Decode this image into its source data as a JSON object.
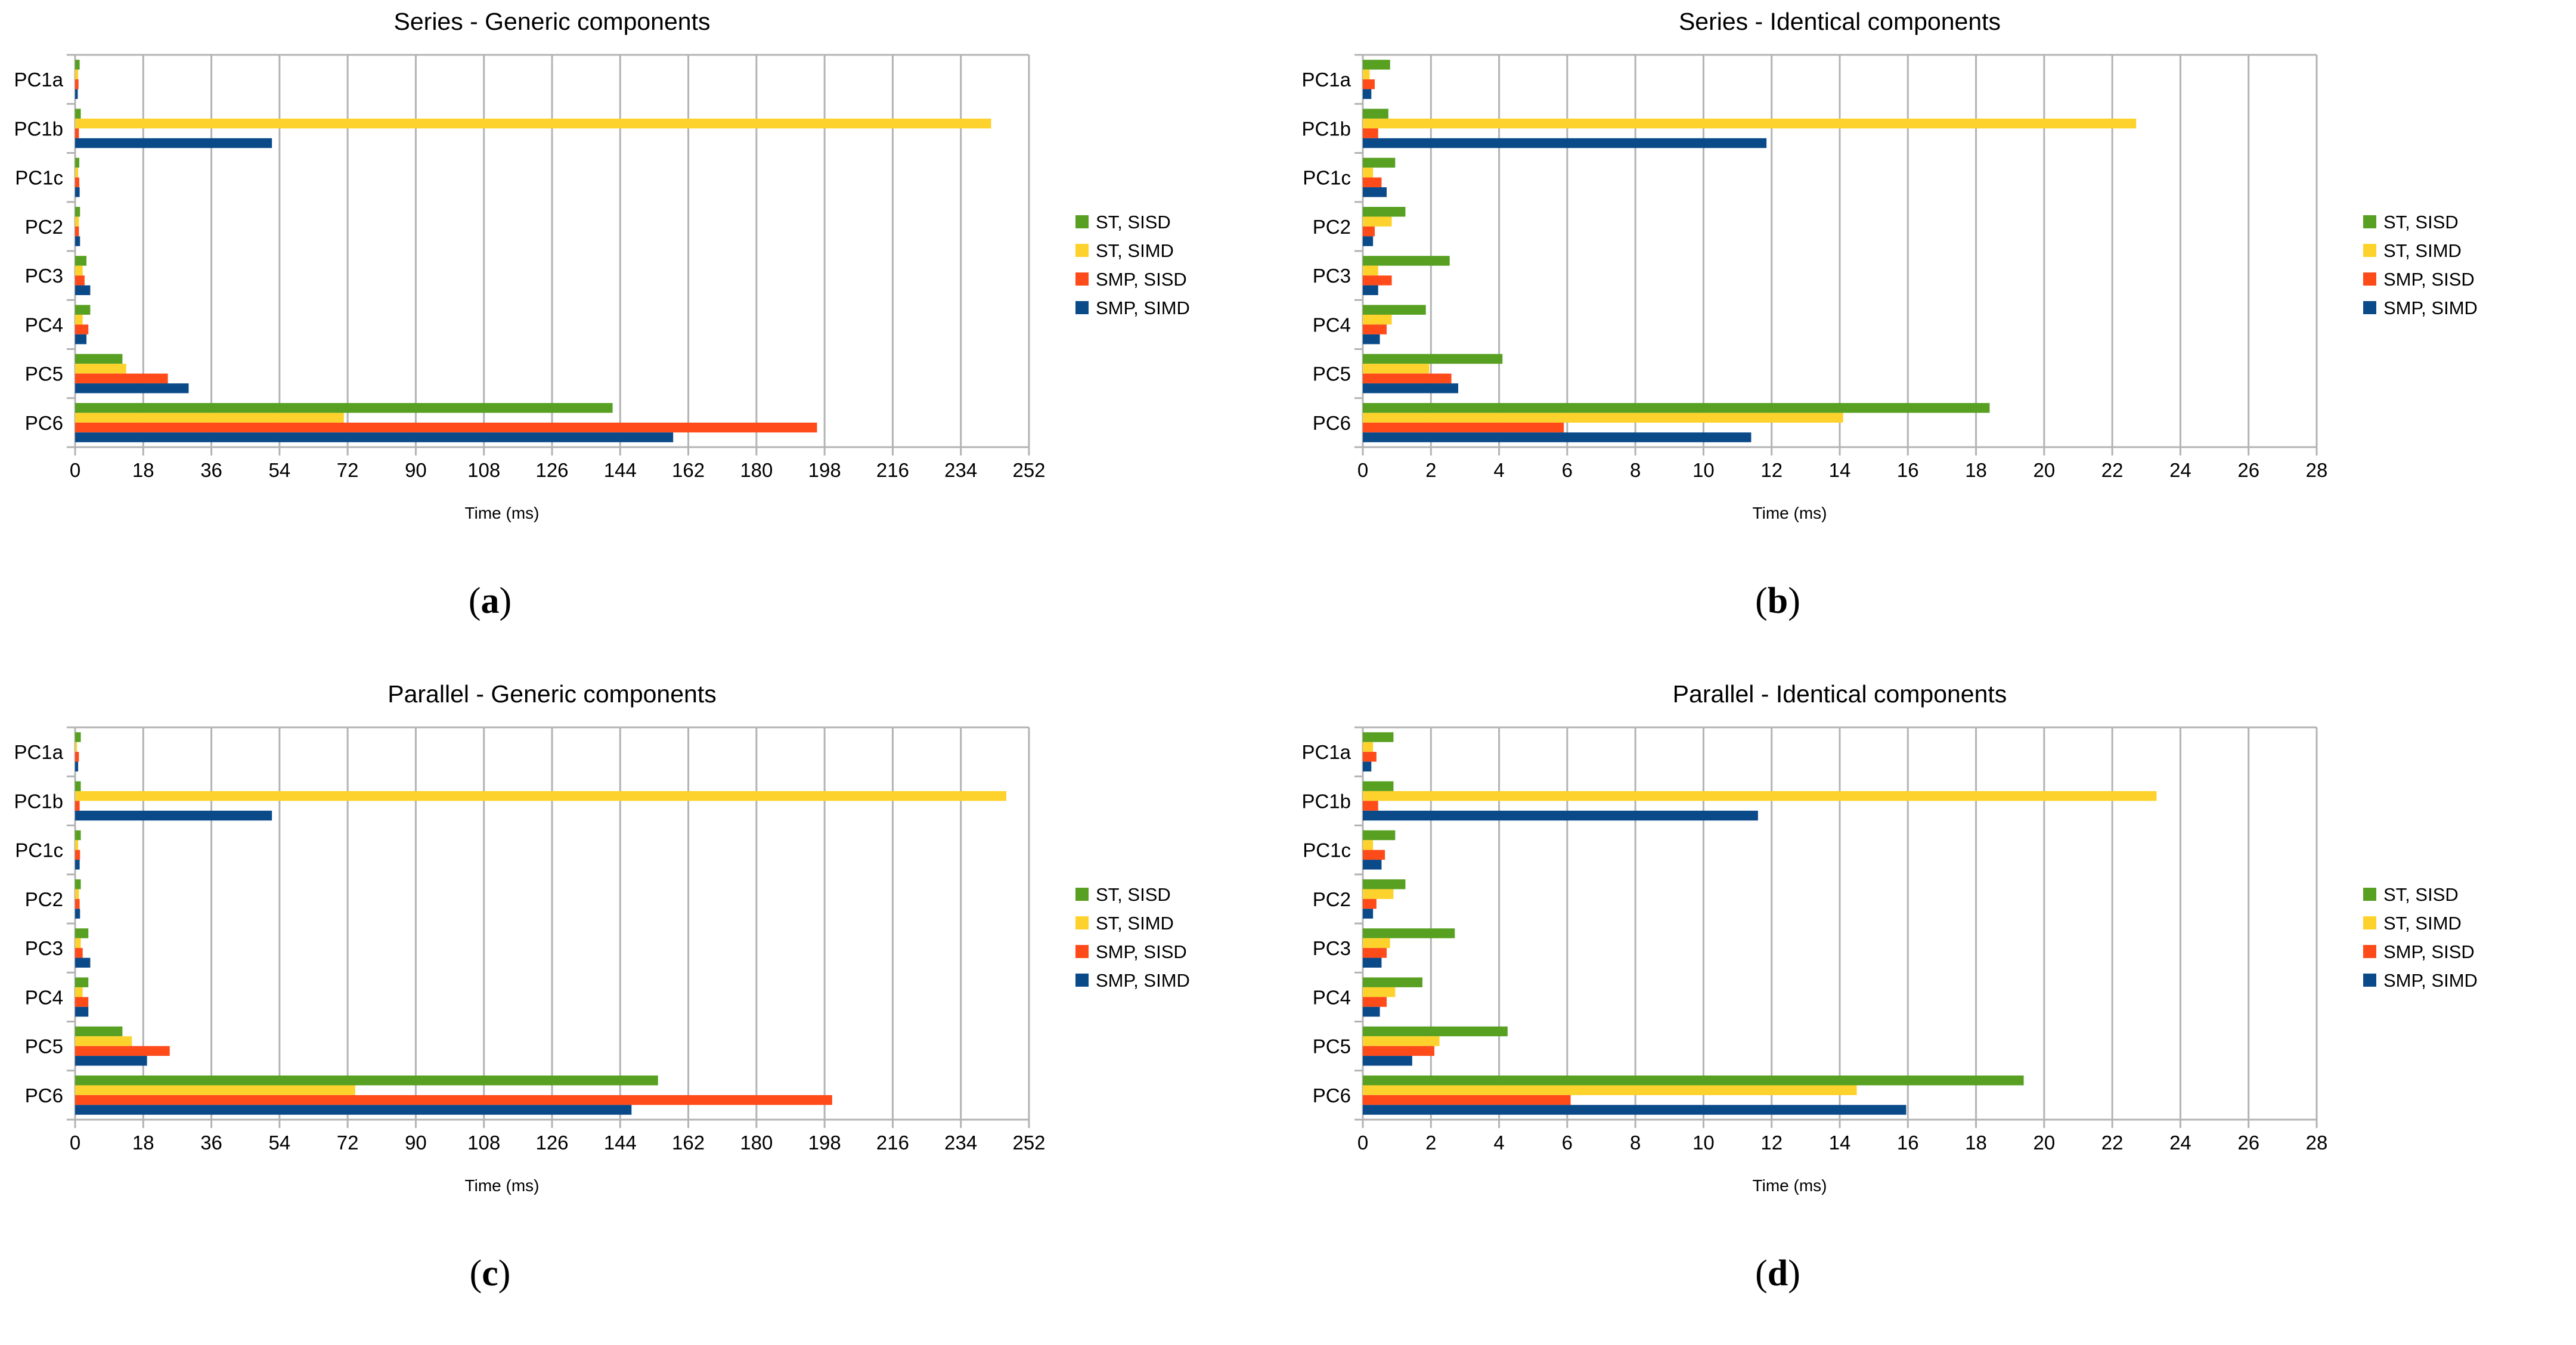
{
  "chart_data": [
    {
      "type": "bar",
      "orientation": "horizontal",
      "title": "Series - Generic components",
      "caption_letter": "a",
      "xlabel": "Time (ms)",
      "ylabel": "",
      "xlim": [
        0,
        252
      ],
      "xticks": [
        0,
        18,
        36,
        54,
        72,
        90,
        108,
        126,
        144,
        162,
        180,
        198,
        216,
        234,
        252
      ],
      "grid": "vertical",
      "legend_position": "right",
      "categories": [
        "PC1a",
        "PC1b",
        "PC1c",
        "PC2",
        "PC3",
        "PC4",
        "PC5",
        "PC6"
      ],
      "series": [
        {
          "name": "ST, SISD",
          "color": "#57a021",
          "values": [
            1.2,
            1.5,
            1.1,
            1.3,
            3.0,
            4.0,
            12.5,
            142
          ]
        },
        {
          "name": "ST, SIMD",
          "color": "#fdd22c",
          "values": [
            0.8,
            242,
            0.8,
            1.0,
            2.0,
            2.0,
            13.5,
            71
          ]
        },
        {
          "name": "SMP, SISD",
          "color": "#ff4a1a",
          "values": [
            0.9,
            1.0,
            1.1,
            1.0,
            2.5,
            3.5,
            24.5,
            196
          ]
        },
        {
          "name": "SMP, SIMD",
          "color": "#0b4a89",
          "values": [
            0.7,
            52,
            1.2,
            1.3,
            4.0,
            3.0,
            30,
            158
          ]
        }
      ]
    },
    {
      "type": "bar",
      "orientation": "horizontal",
      "title": "Series - Identical components",
      "caption_letter": "b",
      "xlabel": "Time (ms)",
      "ylabel": "",
      "xlim": [
        0,
        28
      ],
      "xticks": [
        0,
        2,
        4,
        6,
        8,
        10,
        12,
        14,
        16,
        18,
        20,
        22,
        24,
        26,
        28
      ],
      "grid": "vertical",
      "legend_position": "right",
      "categories": [
        "PC1a",
        "PC1b",
        "PC1c",
        "PC2",
        "PC3",
        "PC4",
        "PC5",
        "PC6"
      ],
      "series": [
        {
          "name": "ST, SISD",
          "color": "#57a021",
          "values": [
            0.8,
            0.75,
            0.95,
            1.25,
            2.55,
            1.85,
            4.1,
            18.4
          ]
        },
        {
          "name": "ST, SIMD",
          "color": "#fdd22c",
          "values": [
            0.2,
            22.7,
            0.3,
            0.85,
            0.45,
            0.85,
            1.95,
            14.1
          ]
        },
        {
          "name": "SMP, SISD",
          "color": "#ff4a1a",
          "values": [
            0.35,
            0.45,
            0.55,
            0.35,
            0.85,
            0.7,
            2.6,
            5.9
          ]
        },
        {
          "name": "SMP, SIMD",
          "color": "#0b4a89",
          "values": [
            0.25,
            11.85,
            0.7,
            0.3,
            0.45,
            0.5,
            2.8,
            11.4
          ]
        }
      ]
    },
    {
      "type": "bar",
      "orientation": "horizontal",
      "title": "Parallel - Generic components",
      "caption_letter": "c",
      "xlabel": "Time (ms)",
      "ylabel": "",
      "xlim": [
        0,
        252
      ],
      "xticks": [
        0,
        18,
        36,
        54,
        72,
        90,
        108,
        126,
        144,
        162,
        180,
        198,
        216,
        234,
        252
      ],
      "grid": "vertical",
      "legend_position": "right",
      "categories": [
        "PC1a",
        "PC1b",
        "PC1c",
        "PC2",
        "PC3",
        "PC4",
        "PC5",
        "PC6"
      ],
      "series": [
        {
          "name": "ST, SISD",
          "color": "#57a021",
          "values": [
            1.5,
            1.5,
            1.5,
            1.5,
            3.5,
            3.5,
            12.5,
            154
          ]
        },
        {
          "name": "ST, SIMD",
          "color": "#fdd22c",
          "values": [
            0.5,
            246,
            0.8,
            1.0,
            1.5,
            2.0,
            15,
            74
          ]
        },
        {
          "name": "SMP, SISD",
          "color": "#ff4a1a",
          "values": [
            1.0,
            1.2,
            1.3,
            1.2,
            2.0,
            3.5,
            25,
            200
          ]
        },
        {
          "name": "SMP, SIMD",
          "color": "#0b4a89",
          "values": [
            0.8,
            52,
            1.2,
            1.3,
            4.0,
            3.5,
            19,
            147
          ]
        }
      ]
    },
    {
      "type": "bar",
      "orientation": "horizontal",
      "title": "Parallel - Identical components",
      "caption_letter": "d",
      "xlabel": "Time (ms)",
      "ylabel": "",
      "xlim": [
        0,
        28
      ],
      "xticks": [
        0,
        2,
        4,
        6,
        8,
        10,
        12,
        14,
        16,
        18,
        20,
        22,
        24,
        26,
        28
      ],
      "grid": "vertical",
      "legend_position": "right",
      "categories": [
        "PC1a",
        "PC1b",
        "PC1c",
        "PC2",
        "PC3",
        "PC4",
        "PC5",
        "PC6"
      ],
      "series": [
        {
          "name": "ST, SISD",
          "color": "#57a021",
          "values": [
            0.9,
            0.9,
            0.95,
            1.25,
            2.7,
            1.75,
            4.25,
            19.4
          ]
        },
        {
          "name": "ST, SIMD",
          "color": "#fdd22c",
          "values": [
            0.3,
            23.3,
            0.3,
            0.9,
            0.8,
            0.95,
            2.25,
            14.5
          ]
        },
        {
          "name": "SMP, SISD",
          "color": "#ff4a1a",
          "values": [
            0.4,
            0.45,
            0.65,
            0.4,
            0.7,
            0.7,
            2.1,
            6.1
          ]
        },
        {
          "name": "SMP, SIMD",
          "color": "#0b4a89",
          "values": [
            0.25,
            11.6,
            0.55,
            0.3,
            0.55,
            0.5,
            1.45,
            15.95
          ]
        }
      ]
    }
  ]
}
